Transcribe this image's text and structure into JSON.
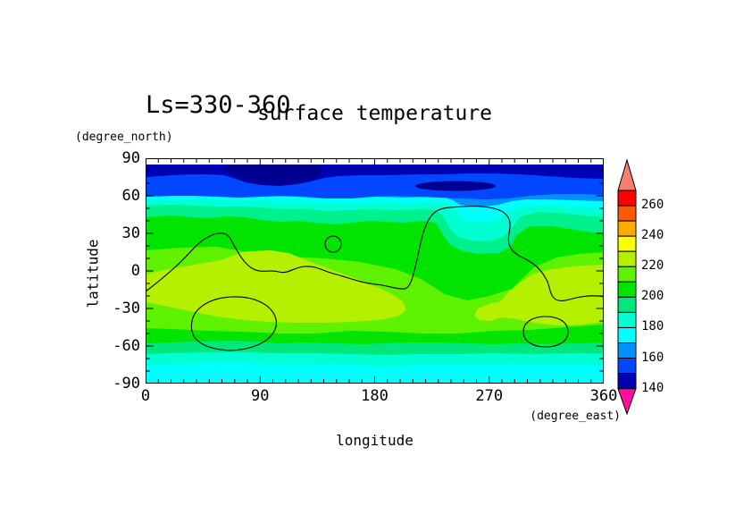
{
  "page": {
    "background": "#ffffff"
  },
  "chart_data": {
    "type": "heatmap",
    "title": "surface temperature",
    "subtitle": "Ls=330-360",
    "xlabel": "longitude",
    "x_units": "(degree_east)",
    "ylabel": "latitude",
    "y_units": "(degree_north)",
    "xlim": [
      0,
      360
    ],
    "ylim": [
      -90,
      90
    ],
    "x_major_ticks": [
      0,
      90,
      180,
      270,
      360
    ],
    "x_minor_step": 10,
    "y_major_ticks": [
      90,
      60,
      30,
      0,
      -30,
      -60,
      -90
    ],
    "y_minor_step": 10,
    "grid": false,
    "legend_position": "right-colorbar",
    "colorbar": {
      "levels": [
        140,
        150,
        160,
        170,
        180,
        190,
        200,
        210,
        220,
        230,
        240,
        250,
        260,
        270
      ],
      "labeled_levels": [
        260,
        240,
        220,
        200,
        180,
        160,
        140
      ],
      "colors_top_to_bottom": [
        "#ff0000",
        "#ff5a00",
        "#ffaa00",
        "#ffff00",
        "#b4f000",
        "#5ff200",
        "#00e400",
        "#00e87d",
        "#00ffd2",
        "#00ffff",
        "#0090ff",
        "#0047ff",
        "#0000b4"
      ],
      "over_arrow_color": "#f87e6e",
      "under_arrow_color": "#ff0f9e"
    },
    "map_colors": {
      "navy": "#0000b4",
      "dark_navy": "#000090",
      "blue": "#0047ff",
      "light_blue": "#0090ff",
      "cyan": "#00ffff",
      "turquoise": "#00ffd2",
      "spring_green_north": "#00f08c",
      "spring_green_south": "#00e87d",
      "green": "#00e400",
      "light_green": "#5ff200",
      "yellow_green": "#b4f000",
      "contour_line": "#000000"
    },
    "zonal_mean_profile": [
      {
        "lat": 85,
        "temp": 145
      },
      {
        "lat": 75,
        "temp": 148
      },
      {
        "lat": 65,
        "temp": 155
      },
      {
        "lat": 58,
        "temp": 165
      },
      {
        "lat": 53,
        "temp": 175
      },
      {
        "lat": 48,
        "temp": 185
      },
      {
        "lat": 42,
        "temp": 195
      },
      {
        "lat": 30,
        "temp": 205
      },
      {
        "lat": 15,
        "temp": 212
      },
      {
        "lat": 0,
        "temp": 218
      },
      {
        "lat": -15,
        "temp": 224
      },
      {
        "lat": -30,
        "temp": 222
      },
      {
        "lat": -45,
        "temp": 210
      },
      {
        "lat": -55,
        "temp": 200
      },
      {
        "lat": -63,
        "temp": 192
      },
      {
        "lat": -72,
        "temp": 182
      },
      {
        "lat": -82,
        "temp": 175
      }
    ],
    "overlay_contours": "black outline contours: global open contour across mid-latitudes, large closed loop near lon 230-290 lat 0-47, closed ovals near lon 40-100 lat -20/-60 and lon 300-330 lat -37/-58, small closed circle near lon 145 lat 22"
  }
}
